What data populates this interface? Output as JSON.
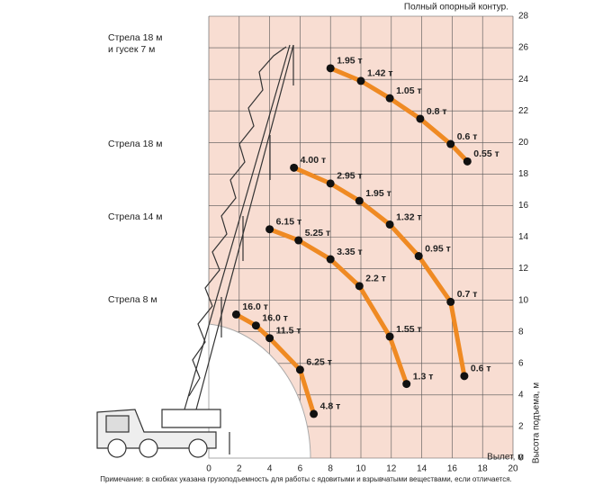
{
  "chart_data": {
    "type": "line",
    "title": "Полный опорный контур.",
    "x_label": "Вылет, м",
    "y_label": "Высота подъема, м",
    "note": "Примечание: в скобках указана грузоподъемность для работы с ядовитыми и взрывчатыми веществами, если отличается.",
    "xlim": [
      0,
      20
    ],
    "xticks": [
      0,
      2,
      4,
      6,
      8,
      10,
      12,
      14,
      16,
      18,
      20
    ],
    "ylim": [
      0,
      28
    ],
    "yticks": [
      0,
      2,
      4,
      6,
      8,
      10,
      12,
      14,
      16,
      18,
      20,
      22,
      24,
      26,
      28
    ],
    "grid": true,
    "color": "#ef8a23",
    "series": [
      {
        "name": [
          "Стрела 18 м",
          "и гусек 7 м"
        ],
        "color": "#ef8a23",
        "x": [
          8,
          10,
          11.9,
          13.9,
          15.9,
          17
        ],
        "values": [
          24.7,
          23.9,
          22.8,
          21.5,
          19.9,
          18.8
        ],
        "labels": [
          "1.95 т",
          "1.42 т",
          "1.05 т",
          "0.8 т",
          "0.6 т",
          "0.55 т"
        ]
      },
      {
        "name": [
          "Стрела 18 м"
        ],
        "color": "#ef8a23",
        "x": [
          5.6,
          8,
          9.9,
          11.9,
          13.8,
          15.9,
          16.8
        ],
        "values": [
          18.4,
          17.4,
          16.3,
          14.8,
          12.8,
          9.9,
          5.2
        ],
        "labels": [
          "4.00 т",
          "2.95 т",
          "1.95 т",
          "1.32 т",
          "0.95 т",
          "0.7 т",
          "0.6 т"
        ]
      },
      {
        "name": [
          "Стрела 14 м"
        ],
        "color": "#ef8a23",
        "x": [
          4,
          5.9,
          8,
          9.9,
          11.9,
          13
        ],
        "values": [
          14.5,
          13.8,
          12.6,
          10.9,
          7.7,
          4.7
        ],
        "labels": [
          "6.15 т",
          "5.25 т",
          "3.35 т",
          "2.2 т",
          "1.55 т",
          "1.3 т"
        ]
      },
      {
        "name": [
          "Стрела 8 м"
        ],
        "color": "#ef8a23",
        "x": [
          1.8,
          3.1,
          4,
          6,
          6.9
        ],
        "values": [
          9.1,
          8.4,
          7.6,
          5.6,
          2.8
        ],
        "labels": [
          "16.0 т",
          "16.0 т",
          "11.5 т",
          "6.25 т",
          "4.8 т"
        ]
      }
    ]
  }
}
